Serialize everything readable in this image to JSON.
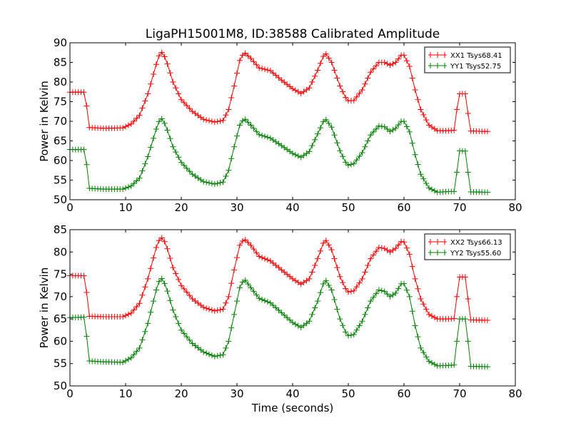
{
  "chart_data": [
    {
      "type": "line",
      "title": "LigaPH15001M8, ID:38588 Calibrated Amplitude",
      "xlabel": "",
      "ylabel": "Power in Kelvin",
      "xlim": [
        0,
        80
      ],
      "ylim": [
        50,
        90
      ],
      "xticks": [
        "0",
        "10",
        "20",
        "30",
        "40",
        "50",
        "60",
        "70",
        "80"
      ],
      "yticks": [
        "50",
        "55",
        "60",
        "65",
        "70",
        "75",
        "80",
        "85",
        "90"
      ],
      "legend_position": "top-right",
      "series": [
        {
          "name": "XX1 Tsys68.41",
          "color": "#ff0000",
          "keypoints": [
            [
              0,
              77.4
            ],
            [
              2.6,
              77.4
            ],
            [
              3.1,
              73
            ],
            [
              3.5,
              68.4
            ],
            [
              6,
              68.2
            ],
            [
              9.5,
              68.3
            ],
            [
              11,
              69.3
            ],
            [
              12.5,
              71.5
            ],
            [
              14,
              77
            ],
            [
              15.5,
              84.5
            ],
            [
              16.3,
              88
            ],
            [
              17.2,
              86
            ],
            [
              18.5,
              80
            ],
            [
              20,
              75.5
            ],
            [
              22,
              72.5
            ],
            [
              24,
              70.5
            ],
            [
              26,
              69.8
            ],
            [
              27.5,
              70.2
            ],
            [
              28.5,
              73
            ],
            [
              29.5,
              79
            ],
            [
              30.5,
              85.5
            ],
            [
              31.3,
              87.6
            ],
            [
              32.5,
              86
            ],
            [
              34,
              83.6
            ],
            [
              36,
              82.9
            ],
            [
              38,
              80.5
            ],
            [
              40,
              78.3
            ],
            [
              41.5,
              77.1
            ],
            [
              43,
              78.5
            ],
            [
              44.5,
              83
            ],
            [
              45.8,
              87.6
            ],
            [
              47,
              85
            ],
            [
              48.5,
              79
            ],
            [
              49.8,
              75.2
            ],
            [
              51,
              75.3
            ],
            [
              52.5,
              78
            ],
            [
              54,
              82.5
            ],
            [
              55.5,
              85
            ],
            [
              56.5,
              85
            ],
            [
              57.5,
              84.3
            ],
            [
              58.5,
              85
            ],
            [
              59.8,
              87.4
            ],
            [
              61,
              84
            ],
            [
              62,
              78
            ],
            [
              63,
              73
            ],
            [
              64.5,
              69
            ],
            [
              66,
              67.6
            ],
            [
              68,
              67.6
            ],
            [
              69,
              67.7
            ],
            [
              69.5,
              73
            ],
            [
              69.8,
              77
            ],
            [
              71,
              77
            ],
            [
              71.5,
              72
            ],
            [
              72,
              67.5
            ],
            [
              75,
              67.4
            ]
          ]
        },
        {
          "name": "YY1 Tsys52.75",
          "color": "#008000",
          "keypoints": [
            [
              0,
              62.8
            ],
            [
              2.6,
              62.8
            ],
            [
              3.1,
              58
            ],
            [
              3.5,
              52.9
            ],
            [
              6,
              52.7
            ],
            [
              9.5,
              52.7
            ],
            [
              11,
              53.5
            ],
            [
              12.5,
              55.5
            ],
            [
              14,
              61
            ],
            [
              15.5,
              68
            ],
            [
              16.3,
              71.1
            ],
            [
              17.2,
              69
            ],
            [
              18.5,
              63.5
            ],
            [
              20,
              59.5
            ],
            [
              22,
              56.5
            ],
            [
              24,
              54.6
            ],
            [
              26,
              54
            ],
            [
              27.5,
              54.5
            ],
            [
              28.5,
              57.5
            ],
            [
              29.5,
              63.5
            ],
            [
              30.5,
              69
            ],
            [
              31.3,
              70.8
            ],
            [
              32.5,
              69
            ],
            [
              34,
              66.6
            ],
            [
              36,
              65.7
            ],
            [
              38,
              63.8
            ],
            [
              40,
              61.8
            ],
            [
              41.5,
              60.8
            ],
            [
              43,
              62.3
            ],
            [
              44.5,
              66.8
            ],
            [
              45.8,
              70.8
            ],
            [
              47,
              68.5
            ],
            [
              48.5,
              62.5
            ],
            [
              49.8,
              58.7
            ],
            [
              51,
              59.2
            ],
            [
              52.5,
              62
            ],
            [
              54,
              66.5
            ],
            [
              55.5,
              68.8
            ],
            [
              56.5,
              68.6
            ],
            [
              57.5,
              67.4
            ],
            [
              58.5,
              68.2
            ],
            [
              59.8,
              70.5
            ],
            [
              61,
              67.3
            ],
            [
              62,
              61.5
            ],
            [
              63,
              56.5
            ],
            [
              64.5,
              53
            ],
            [
              66,
              51.9
            ],
            [
              68,
              52.1
            ],
            [
              69,
              52.1
            ],
            [
              69.5,
              57
            ],
            [
              69.8,
              62.5
            ],
            [
              71,
              62.4
            ],
            [
              71.5,
              57
            ],
            [
              72,
              52
            ],
            [
              75,
              51.9
            ]
          ]
        }
      ]
    },
    {
      "type": "line",
      "title": "",
      "xlabel": "Time (seconds)",
      "ylabel": "Power in Kelvin",
      "xlim": [
        0,
        80
      ],
      "ylim": [
        50,
        85
      ],
      "xticks": [
        "0",
        "10",
        "20",
        "30",
        "40",
        "50",
        "60",
        "70",
        "80"
      ],
      "yticks": [
        "50",
        "55",
        "60",
        "65",
        "70",
        "75",
        "80",
        "85"
      ],
      "legend_position": "top-right",
      "series": [
        {
          "name": "XX2 Tsys66.13",
          "color": "#ff0000",
          "keypoints": [
            [
              0,
              74.7
            ],
            [
              2.6,
              74.7
            ],
            [
              3.1,
              70
            ],
            [
              3.5,
              65.6
            ],
            [
              6,
              65.5
            ],
            [
              9.5,
              65.5
            ],
            [
              11,
              66.3
            ],
            [
              12.5,
              68.5
            ],
            [
              14,
              74
            ],
            [
              15.5,
              81
            ],
            [
              16.3,
              83.5
            ],
            [
              17.2,
              82
            ],
            [
              18.5,
              76.5
            ],
            [
              20,
              72.5
            ],
            [
              22,
              69.5
            ],
            [
              24,
              67.6
            ],
            [
              26,
              66.8
            ],
            [
              27.5,
              67.2
            ],
            [
              28.5,
              70
            ],
            [
              29.5,
              76
            ],
            [
              30.5,
              81.5
            ],
            [
              31.3,
              83
            ],
            [
              32.5,
              81.5
            ],
            [
              34,
              79
            ],
            [
              36,
              78
            ],
            [
              38,
              76
            ],
            [
              40,
              74
            ],
            [
              41.5,
              72.8
            ],
            [
              43,
              74
            ],
            [
              44.5,
              78.5
            ],
            [
              45.8,
              83
            ],
            [
              47,
              80.5
            ],
            [
              48.5,
              74.5
            ],
            [
              49.8,
              71
            ],
            [
              51,
              71.3
            ],
            [
              52.5,
              74
            ],
            [
              54,
              78.5
            ],
            [
              55.5,
              81
            ],
            [
              56.5,
              80.8
            ],
            [
              57.5,
              80
            ],
            [
              58.5,
              80.8
            ],
            [
              59.8,
              82.8
            ],
            [
              61,
              79.5
            ],
            [
              62,
              74
            ],
            [
              63,
              69.5
            ],
            [
              64.5,
              66
            ],
            [
              66,
              65
            ],
            [
              68,
              65
            ],
            [
              69,
              65.1
            ],
            [
              69.5,
              70
            ],
            [
              69.8,
              74.4
            ],
            [
              71,
              74.4
            ],
            [
              71.5,
              69.5
            ],
            [
              72,
              64.8
            ],
            [
              75,
              64.7
            ]
          ]
        },
        {
          "name": "YY2 Tsys55.60",
          "color": "#008000",
          "keypoints": [
            [
              0,
              65.3
            ],
            [
              2.6,
              65.4
            ],
            [
              3.1,
              60
            ],
            [
              3.5,
              55.6
            ],
            [
              6,
              55.4
            ],
            [
              9.5,
              55.3
            ],
            [
              11,
              56.3
            ],
            [
              12.5,
              58.5
            ],
            [
              14,
              64
            ],
            [
              15.5,
              71.5
            ],
            [
              16.3,
              74.5
            ],
            [
              17.2,
              72.5
            ],
            [
              18.5,
              67
            ],
            [
              20,
              62.5
            ],
            [
              22,
              59.5
            ],
            [
              24,
              57.6
            ],
            [
              26,
              56.6
            ],
            [
              27.5,
              57
            ],
            [
              28.5,
              60
            ],
            [
              29.5,
              66
            ],
            [
              30.5,
              72
            ],
            [
              31.3,
              74
            ],
            [
              32.5,
              72
            ],
            [
              34,
              69.6
            ],
            [
              36,
              68.6
            ],
            [
              38,
              66.4
            ],
            [
              40,
              64.2
            ],
            [
              41.5,
              63.1
            ],
            [
              43,
              64.5
            ],
            [
              44.5,
              69
            ],
            [
              45.8,
              74
            ],
            [
              47,
              71.5
            ],
            [
              48.5,
              65
            ],
            [
              49.8,
              61.2
            ],
            [
              51,
              61.5
            ],
            [
              52.5,
              64.5
            ],
            [
              54,
              69
            ],
            [
              55.5,
              71.5
            ],
            [
              56.5,
              71.2
            ],
            [
              57.5,
              70
            ],
            [
              58.5,
              70.8
            ],
            [
              59.8,
              73.5
            ],
            [
              61,
              70
            ],
            [
              62,
              63.5
            ],
            [
              63,
              58.5
            ],
            [
              64.5,
              55.5
            ],
            [
              66,
              54.5
            ],
            [
              68,
              54.6
            ],
            [
              69,
              54.7
            ],
            [
              69.5,
              60
            ],
            [
              69.8,
              65
            ],
            [
              71,
              65
            ],
            [
              71.5,
              60
            ],
            [
              72,
              54.4
            ],
            [
              75,
              54.3
            ]
          ]
        }
      ]
    }
  ]
}
